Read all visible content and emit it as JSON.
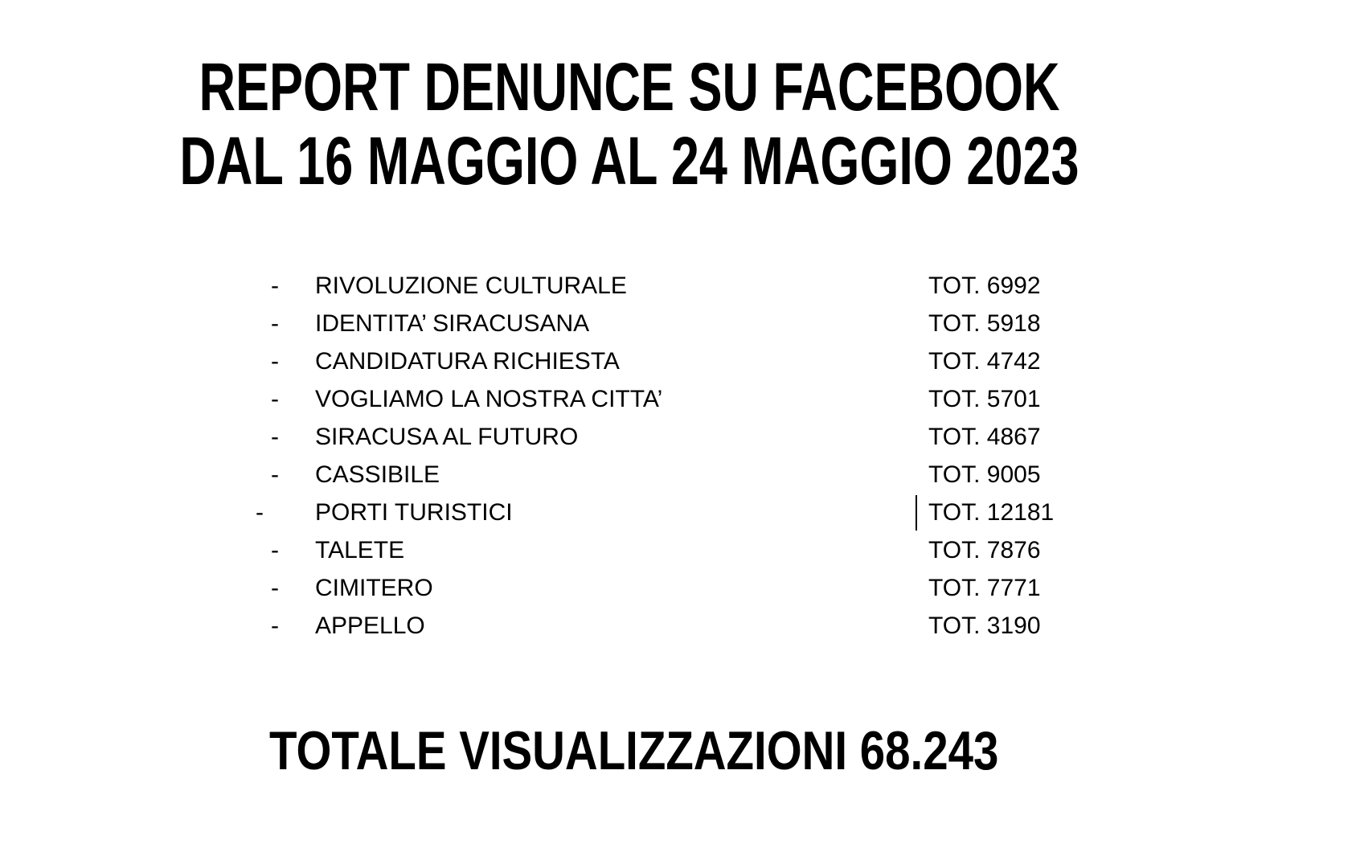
{
  "page": {
    "background_color": "#ffffff",
    "text_color": "#000000"
  },
  "title": {
    "line1": "REPORT DENUNCE SU FACEBOOK",
    "line2": "DAL 16 MAGGIO AL 24 MAGGIO 2023"
  },
  "list": {
    "bullet_char": "-",
    "items": [
      {
        "label": "RIVOLUZIONE CULTURALE",
        "total": "TOT. 6992"
      },
      {
        "label": "IDENTITA’ SIRACUSANA",
        "total": "TOT. 5918"
      },
      {
        "label": "CANDIDATURA RICHIESTA",
        "total": "TOT. 4742"
      },
      {
        "label": "VOGLIAMO LA NOSTRA CITTA’",
        "total": "TOT. 5701"
      },
      {
        "label": "SIRACUSA AL FUTURO",
        "total": "TOT. 4867"
      },
      {
        "label": "CASSIBILE",
        "total": "TOT. 9005"
      },
      {
        "label": "PORTI TURISTICI",
        "total": "TOT. 12181",
        "outdented": true,
        "caret": true
      },
      {
        "label": "TALETE",
        "total": "TOT. 7876"
      },
      {
        "label": "CIMITERO",
        "total": "TOT. 7771"
      },
      {
        "label": "APPELLO",
        "total": "TOT. 3190"
      }
    ]
  },
  "footer": {
    "total_label": "TOTALE VISUALIZZAZIONI 68.243"
  }
}
